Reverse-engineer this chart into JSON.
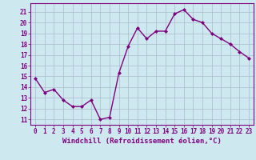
{
  "x": [
    0,
    1,
    2,
    3,
    4,
    5,
    6,
    7,
    8,
    9,
    10,
    11,
    12,
    13,
    14,
    15,
    16,
    17,
    18,
    19,
    20,
    21,
    22,
    23
  ],
  "y": [
    14.8,
    13.5,
    13.8,
    12.8,
    12.2,
    12.2,
    12.8,
    11.0,
    11.2,
    15.3,
    17.8,
    19.5,
    18.5,
    19.2,
    19.2,
    20.8,
    21.2,
    20.3,
    20.0,
    19.0,
    18.5,
    18.0,
    17.3,
    16.7
  ],
  "xlabel": "Windchill (Refroidissement éolien,°C)",
  "ylim": [
    10.5,
    21.8
  ],
  "xlim": [
    -0.5,
    23.5
  ],
  "yticks": [
    11,
    12,
    13,
    14,
    15,
    16,
    17,
    18,
    19,
    20,
    21
  ],
  "xticks": [
    0,
    1,
    2,
    3,
    4,
    5,
    6,
    7,
    8,
    9,
    10,
    11,
    12,
    13,
    14,
    15,
    16,
    17,
    18,
    19,
    20,
    21,
    22,
    23
  ],
  "line_color": "#800080",
  "marker": "D",
  "marker_size": 2.0,
  "bg_color": "#cee8f0",
  "grid_color": "#aabbcc",
  "axis_color": "#800080",
  "tick_color": "#800080",
  "xlabel_color": "#800080",
  "xlabel_fontsize": 6.5,
  "tick_fontsize": 5.5,
  "line_width": 1.0
}
